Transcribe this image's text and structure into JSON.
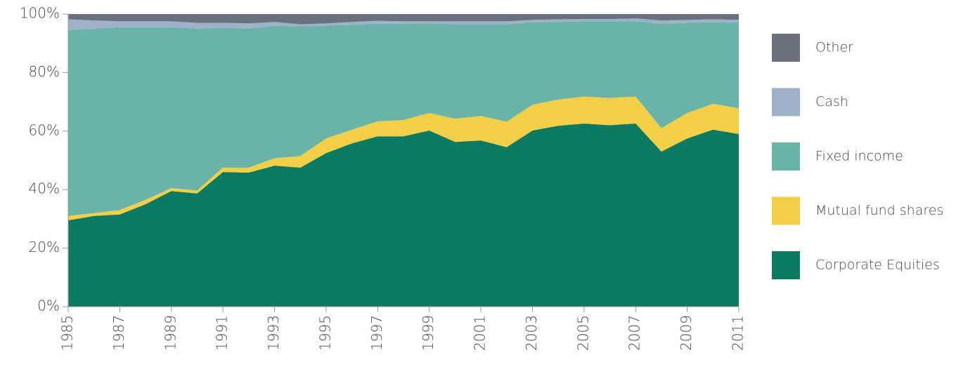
{
  "chart_data": {
    "type": "stacked_area",
    "x": [
      1985,
      1986,
      1987,
      1988,
      1989,
      1990,
      1991,
      1992,
      1993,
      1994,
      1995,
      1996,
      1997,
      1998,
      1999,
      2000,
      2001,
      2002,
      2003,
      2004,
      2005,
      2006,
      2007,
      2008,
      2009,
      2010,
      2011
    ],
    "xlim": [
      1985,
      2011
    ],
    "xticks": [
      1985,
      1987,
      1989,
      1991,
      1993,
      1995,
      1997,
      1999,
      2001,
      2003,
      2005,
      2007,
      2009,
      2011
    ],
    "ylim": [
      0,
      100
    ],
    "yticks": [
      {
        "value": 0,
        "label": "0%"
      },
      {
        "value": 20,
        "label": "20%"
      },
      {
        "value": 40,
        "label": "40%"
      },
      {
        "value": 60,
        "label": "60%"
      },
      {
        "value": 80,
        "label": "80%"
      },
      {
        "value": 100,
        "label": "100%"
      }
    ],
    "grid": false,
    "legend": "right",
    "series": [
      {
        "name": "Corporate Equities",
        "color": "#0b7a61",
        "values": [
          29.5,
          31,
          31.5,
          35,
          39.5,
          38.7,
          46,
          45.8,
          48.2,
          47.5,
          52.5,
          55.8,
          58.2,
          58.2,
          60.2,
          56.3,
          56.8,
          54.5,
          60.2,
          61.8,
          62.6,
          62,
          62.6,
          53,
          57.5,
          60.5,
          59
        ]
      },
      {
        "name": "Mutual fund shares",
        "color": "#f3cf47",
        "values": [
          1.5,
          1,
          1.5,
          1.5,
          1,
          1,
          1.5,
          1.7,
          2.5,
          4,
          5,
          4.7,
          5.1,
          5.6,
          6,
          7.9,
          8.4,
          8.7,
          8.8,
          9,
          9.2,
          9.3,
          9.2,
          8,
          8.7,
          8.8,
          8.8
        ]
      },
      {
        "name": "Fixed income",
        "color": "#6ab3a6",
        "values": [
          63.5,
          63,
          62.5,
          59,
          55,
          55.3,
          47.8,
          47.5,
          45.3,
          44.3,
          38.5,
          35.8,
          33.4,
          32.9,
          30.6,
          32.3,
          31.3,
          33.3,
          28.3,
          26.5,
          25.7,
          26.2,
          25.7,
          35.7,
          30.8,
          27.9,
          29.2
        ]
      },
      {
        "name": "Cash",
        "color": "#9db1c9",
        "values": [
          3.7,
          2.8,
          2,
          2,
          2,
          2,
          1.7,
          1.8,
          1.3,
          0.7,
          0.8,
          1,
          1,
          0.8,
          0.7,
          1,
          1,
          1,
          0.7,
          0.9,
          0.8,
          0.8,
          1,
          1.1,
          1,
          1,
          1
        ]
      },
      {
        "name": "Other",
        "color": "#6b717c",
        "values": [
          1.8,
          2.2,
          2.5,
          2.5,
          2.5,
          3,
          3,
          3.2,
          2.7,
          3.5,
          3.2,
          2.7,
          2.3,
          2.5,
          2.5,
          2.5,
          2.5,
          2.5,
          2,
          1.8,
          1.7,
          1.7,
          1.5,
          2.2,
          2,
          1.8,
          2
        ]
      }
    ]
  }
}
